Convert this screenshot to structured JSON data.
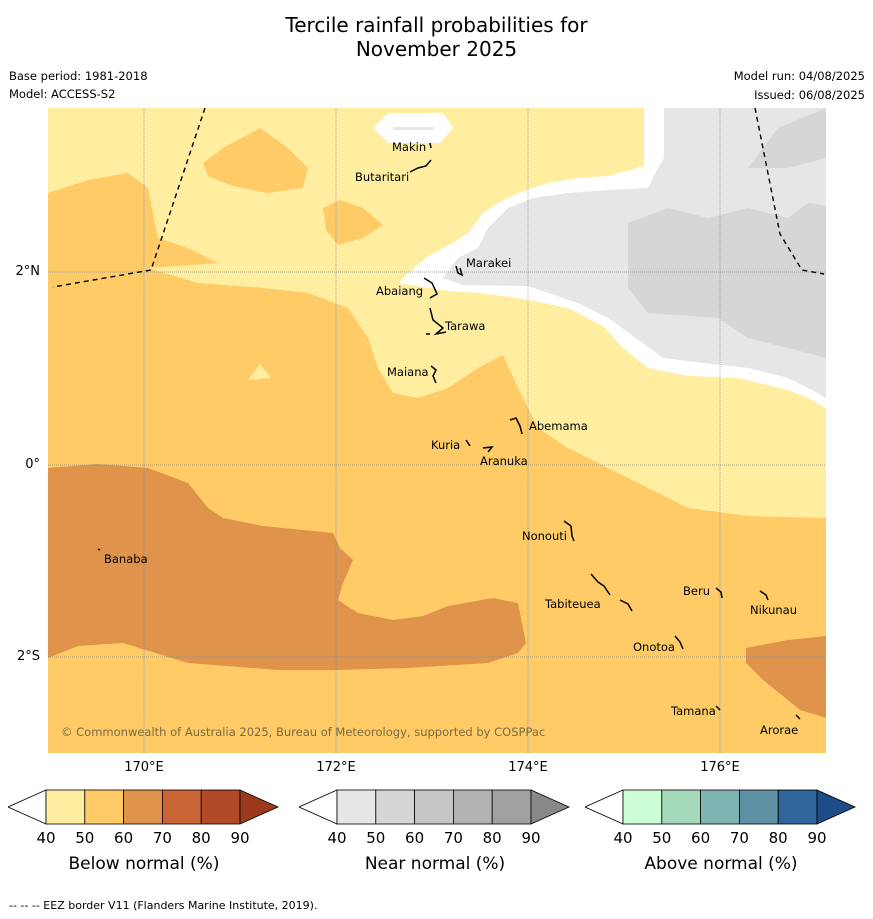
{
  "title": {
    "line1": "Tercile rainfall probabilities for",
    "line2": "November 2025"
  },
  "meta": {
    "base_period": "Base period: 1981-2018",
    "model": "Model: ACCESS-S2",
    "model_run": "Model run: 04/08/2025",
    "issued": "Issued: 06/08/2025"
  },
  "axes": {
    "lat_labels": [
      "2°N",
      "0°",
      "2°S"
    ],
    "lon_labels": [
      "170°E",
      "172°E",
      "174°E",
      "176°E"
    ]
  },
  "places": [
    {
      "name": "Makin"
    },
    {
      "name": "Butaritari"
    },
    {
      "name": "Marakei"
    },
    {
      "name": "Abaiang"
    },
    {
      "name": "Tarawa"
    },
    {
      "name": "Maiana"
    },
    {
      "name": "Abemama"
    },
    {
      "name": "Kuria"
    },
    {
      "name": "Aranuka"
    },
    {
      "name": "Nonouti"
    },
    {
      "name": "Banaba"
    },
    {
      "name": "Tabiteuea"
    },
    {
      "name": "Beru"
    },
    {
      "name": "Nikunau"
    },
    {
      "name": "Onotoa"
    },
    {
      "name": "Tamana"
    },
    {
      "name": "Arorae"
    }
  ],
  "copyright": "© Commonwealth of Australia 2025, Bureau of Meteorology, supported by COSPPac",
  "colorbars": [
    {
      "title": "Below normal (%)",
      "ticks": [
        "40",
        "50",
        "60",
        "70",
        "80",
        "90"
      ],
      "colors": [
        "#ffffff",
        "#ffeda0",
        "#fecb66",
        "#e0934a",
        "#c96434",
        "#b04a28",
        "#9c3a1e"
      ]
    },
    {
      "title": "Near normal (%)",
      "ticks": [
        "40",
        "50",
        "60",
        "70",
        "80",
        "90"
      ],
      "colors": [
        "#ffffff",
        "#e6e6e6",
        "#d6d6d6",
        "#c6c6c6",
        "#b3b3b3",
        "#a0a0a0",
        "#888888"
      ]
    },
    {
      "title": "Above normal (%)",
      "ticks": [
        "40",
        "50",
        "60",
        "70",
        "80",
        "90"
      ],
      "colors": [
        "#ffffff",
        "#ccffd4",
        "#a5d9bc",
        "#7fb5b0",
        "#5d91a3",
        "#2f6599",
        "#1f4c86"
      ]
    }
  ],
  "footer": "-- -- -- EEZ border V11 (Flanders Marine Institute, 2019)."
}
